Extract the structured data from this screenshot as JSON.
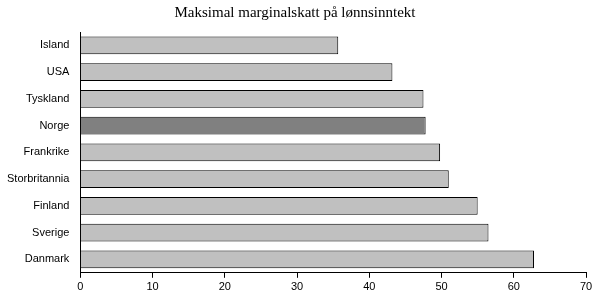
{
  "chart_data": {
    "type": "bar",
    "title": "Maksimal marginalskatt på lønnsinntekt",
    "orientation": "horizontal",
    "categories": [
      "Island",
      "USA",
      "Tyskland",
      "Norge",
      "Frankrike",
      "Storbritannia",
      "Finland",
      "Sverige",
      "Danmark"
    ],
    "values": [
      35.7,
      43.2,
      47.5,
      47.8,
      49.8,
      51.0,
      55.0,
      56.5,
      62.8
    ],
    "colors": [
      "#c0c0c0",
      "#c0c0c0",
      "#c0c0c0",
      "#808080",
      "#c0c0c0",
      "#c0c0c0",
      "#c0c0c0",
      "#c0c0c0",
      "#c0c0c0"
    ],
    "xlim": [
      0,
      70
    ],
    "xticks": [
      0,
      10,
      20,
      30,
      40,
      50,
      60,
      70
    ],
    "grid": false
  }
}
